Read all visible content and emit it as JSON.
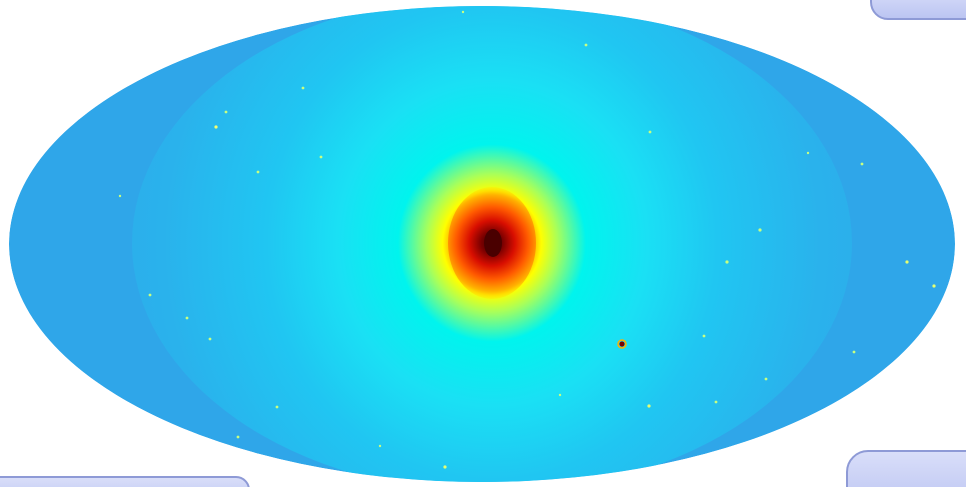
{
  "image": {
    "kind": "all-sky map",
    "projection": "mollweide",
    "colormap": [
      "#2fa8ea",
      "#1fd0f5",
      "#00f4ee",
      "#7dff8a",
      "#ffff00",
      "#ff9a00",
      "#ff2600",
      "#b30000",
      "#5a0000"
    ],
    "colors": {
      "background": "#ffffff",
      "panel_fill": "#c8cff6",
      "panel_border": "#8e9ad6"
    }
  }
}
